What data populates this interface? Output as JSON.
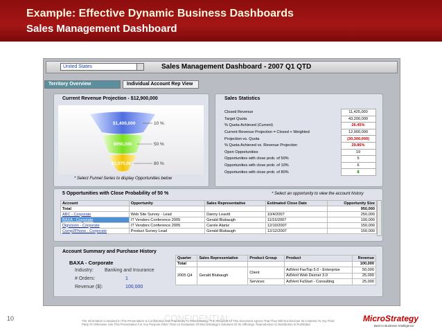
{
  "header": {
    "title": "Example:   Effective Dynamic Business Dashboards",
    "subtitle": "Sales Management Dashboard"
  },
  "toolbar": {
    "dropdown": "United States",
    "title": "Sales Management Dashboard - 2007 Q1 QTD"
  },
  "tabs": [
    "Territory Overview",
    "Individual Account Rep View"
  ],
  "funnel": {
    "title": "Current Revenue Projection - $12,900,000",
    "stages": [
      {
        "amount": "$1,400,000",
        "probability": "10 %"
      },
      {
        "amount": "$950,000",
        "probability": "50 %"
      },
      {
        "amount": "$1,075,000",
        "probability": "80 %"
      }
    ],
    "note": "* Select Funnel Series to display Opportunities below"
  },
  "statistics": {
    "title": "Sales Statistics",
    "rows": [
      [
        "Closed Revenue",
        "11,425,000"
      ],
      [
        "Target Quota",
        "43,200,000"
      ],
      [
        "% Quota Achieved (Current)",
        "26.45%"
      ],
      [
        "Current Revenue Projection = Closed + Weighted",
        "12,900,000"
      ],
      [
        "Projection vs. Quota",
        "(30,300,000)"
      ],
      [
        "% Quota Achieved vs. Revenue Projection",
        "29.86%"
      ],
      [
        "Open Opportunities",
        "19"
      ],
      [
        "Opportunities with  close prob. of 50%",
        "5"
      ],
      [
        "Opportunities with  close prob. of 10%",
        "6"
      ],
      [
        "Opportunities with  close prob. of 80%",
        "8"
      ]
    ]
  },
  "opportunities": {
    "title": "5 Opportunities with Close Probability of  50 %",
    "hint": "* Select an opportunity to view the account history",
    "columns": [
      "Account",
      "Opportunity",
      "Sales Representative",
      "Estimated Close Date",
      "Opportunity Size"
    ],
    "total_label": "Total",
    "total": "950,000",
    "rows": [
      [
        "ABC - Corporate",
        "Web Site Survey - Lead",
        "Danny Leavitt",
        "10/4/2007",
        "250,000"
      ],
      [
        "BAXA - Corporate",
        "IT Vendors Conference 2005",
        "Gerald Blubaugh",
        "11/15/2007",
        "100,000"
      ],
      [
        "Digivision - Corporate",
        "IT Vendors Conference 2005",
        "Carole Alaniz",
        "12/10/2007",
        "150,000"
      ],
      [
        "Comp2Phone - Corporate",
        "Product Survey Lead",
        "Gerald Blubaugh",
        "12/12/2007",
        "150,000"
      ]
    ]
  },
  "account": {
    "title": "Account Summary and Purchase History",
    "name": "BAXA - Corporate",
    "fields": [
      [
        "Industry:",
        "Banking and Insurance"
      ],
      [
        "# Orders:",
        "1"
      ],
      [
        "Revenue ($):",
        "100,000"
      ]
    ],
    "columns": [
      "Quarter",
      "Sales Representative",
      "Product Group",
      "Product",
      "Revenue"
    ],
    "total_label": "Total",
    "total": "100,000",
    "quarter": "2005 Q4",
    "rep": "Gerald Blubaugh",
    "groups": [
      {
        "name": "Client",
        "items": [
          [
            "AdVent FasTop 5.0 - Enterprise",
            "50,000"
          ],
          [
            "AdVent Web Dezner 3.0",
            "25,000"
          ]
        ]
      },
      {
        "name": "Services",
        "items": [
          [
            "AdVent FaStart - Consulting",
            "25,000"
          ]
        ]
      }
    ]
  },
  "footer": {
    "page": "10",
    "watermark": "CONFIDENTIAL",
    "disclaimer": "The Information Contained In This Presentation Is Confidential And Proprietary To MicroStrategy. The Recipient Of This Document Agrees That They Will Not Disclose Its Contents To Any Third Party Or Otherwise Use This Presentation For Any Purpose Other Than An Evaluation Of MicroStrategy's Solutions Or Its Offerings. Reproduction or Distribution Is Prohibited",
    "logo": "MicroStrategy",
    "tagline": "Best In Business Intelligence"
  }
}
